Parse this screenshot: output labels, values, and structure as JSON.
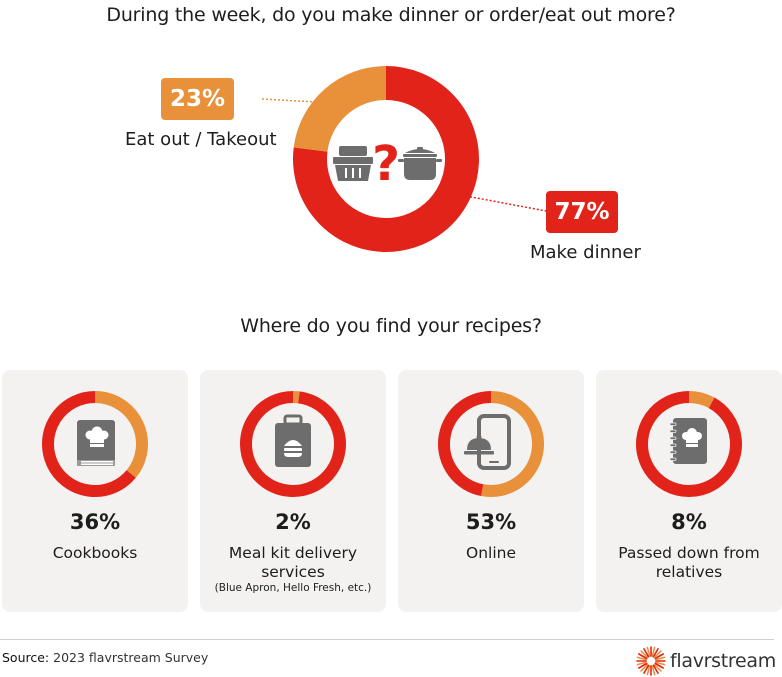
{
  "colors": {
    "make_dinner": "#e2231a",
    "eat_out": "#e8913a",
    "card_bg": "#f3f2f0",
    "question_mark": "#e2231a",
    "icon_gray": "#6d6d6d"
  },
  "chart_data": [
    {
      "type": "pie",
      "donut": true,
      "title": "During the week, do you make dinner or order/eat out more?",
      "slices": [
        {
          "label": "Eat out / Takeout",
          "value": 23,
          "value_label": "23%",
          "color": "#e8913a"
        },
        {
          "label": "Make dinner",
          "value": 77,
          "value_label": "77%",
          "color": "#e2231a"
        }
      ],
      "center_icons": [
        "takeout-container-icon",
        "question-mark-icon",
        "cooking-pot-icon"
      ]
    },
    {
      "type": "pie",
      "donut": true,
      "title": "Where do you find your recipes?",
      "panels": [
        {
          "label": "Cookbooks",
          "note": "",
          "value": 36,
          "value_label": "36%",
          "icon": "cookbook-icon"
        },
        {
          "label": "Meal kit delivery services",
          "note": "(Blue Apron, Hello Fresh, etc.)",
          "value": 2,
          "value_label": "2%",
          "icon": "meal-kit-bag-icon"
        },
        {
          "label": "Online",
          "note": "",
          "value": 53,
          "value_label": "53%",
          "icon": "phone-cloche-icon"
        },
        {
          "label": "Passed down from relatives",
          "note": "",
          "value": 8,
          "value_label": "8%",
          "icon": "recipe-notebook-icon"
        }
      ],
      "highlight_color": "#e8913a",
      "remainder_color": "#e2231a"
    }
  ],
  "footer": {
    "source_label": "Source:",
    "source_text": " 2023 flavrstream Survey",
    "brand": "flavrstream"
  }
}
